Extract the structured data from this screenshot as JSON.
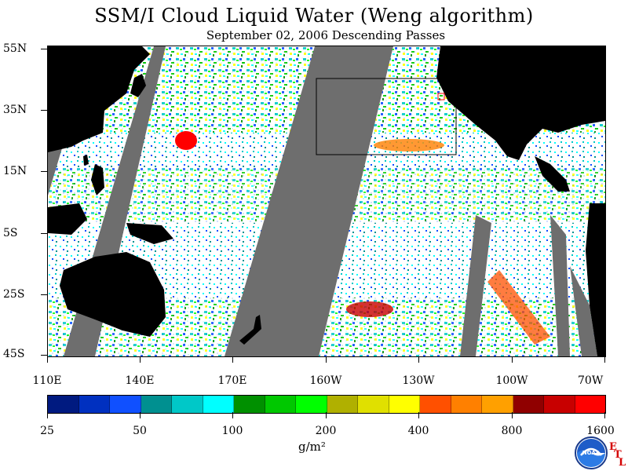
{
  "title": "SSM/I Cloud Liquid Water (Weng algorithm)",
  "subtitle": "September 02, 2006  Descending Passes",
  "lat_labels": [
    "55N",
    "35N",
    "15N",
    "5S",
    "25S",
    "45S"
  ],
  "lon_labels": [
    "110E",
    "140E",
    "170E",
    "160W",
    "130W",
    "100W",
    "70W"
  ],
  "colorbar": {
    "labels": [
      "25",
      "50",
      "100",
      "200",
      "400",
      "800",
      "1600"
    ],
    "units": "g/m²",
    "colors": [
      "#001a80",
      "#0030c0",
      "#1050ff",
      "#009090",
      "#00c8c8",
      "#00ffff",
      "#009000",
      "#00c800",
      "#00ff00",
      "#b0b000",
      "#e0e000",
      "#ffff00",
      "#ff5000",
      "#ff8000",
      "#ffa000",
      "#900000",
      "#c80000",
      "#ff0000"
    ]
  },
  "logo": {
    "agency_text": "NOAA",
    "etl_letters": [
      "E",
      "T",
      "L"
    ]
  },
  "map_colors": {
    "land": "#000000",
    "no_data": "#6e6e6e",
    "clear": "#ffffff",
    "box": "#000000"
  }
}
